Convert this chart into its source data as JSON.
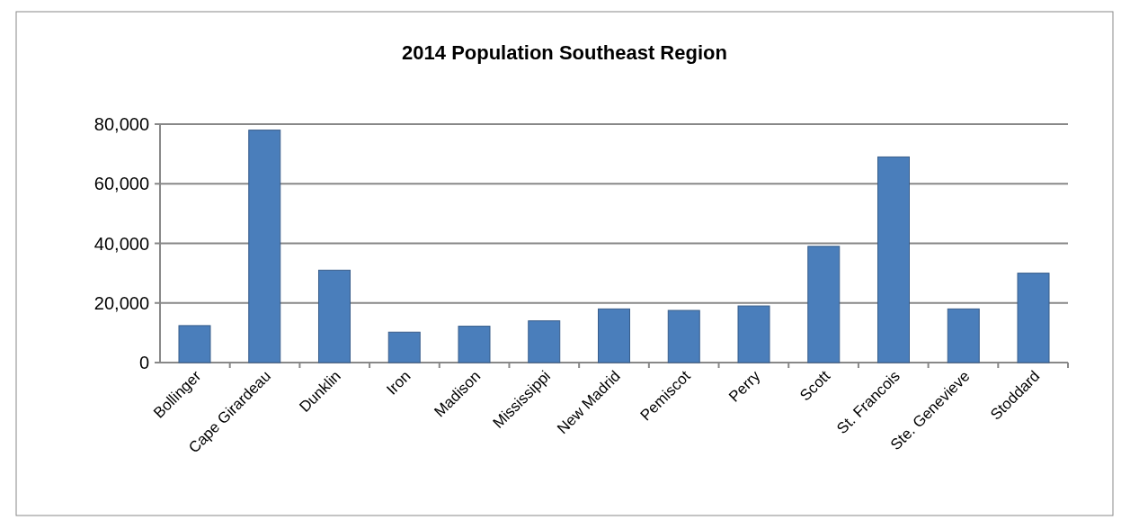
{
  "chart_data": {
    "type": "bar",
    "title": "2014 Population Southeast Region",
    "categories": [
      "Bollinger",
      "Cape Girardeau",
      "Dunklin",
      "Iron",
      "Madison",
      "Mississippi",
      "New Madrid",
      "Pemiscot",
      "Perry",
      "Scott",
      "St. Francois",
      "Ste. Genevieve",
      "Stoddard"
    ],
    "values": [
      12400,
      78000,
      31000,
      10200,
      12200,
      14000,
      18000,
      17500,
      19000,
      39000,
      69000,
      18000,
      30000
    ],
    "color": "#4a7ebb",
    "ylim": [
      0,
      80000
    ],
    "yticks": [
      {
        "value": 0,
        "label": "0"
      },
      {
        "value": 20000,
        "label": "20,000"
      },
      {
        "value": 40000,
        "label": "40,000"
      },
      {
        "value": 60000,
        "label": "60,000"
      },
      {
        "value": 80000,
        "label": "80,000"
      }
    ],
    "grid": "y"
  }
}
